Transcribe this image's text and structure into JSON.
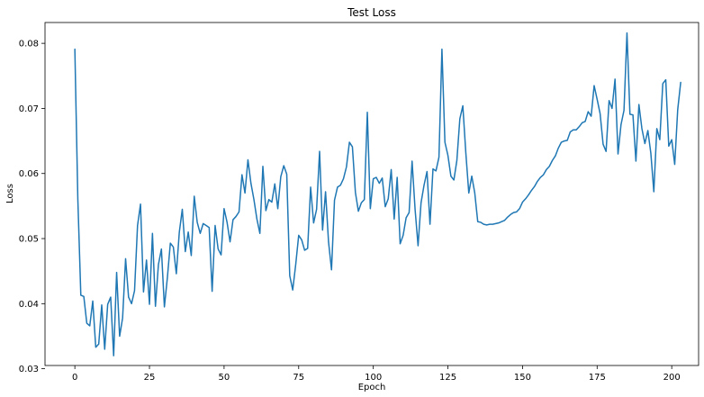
{
  "chart_data": {
    "type": "line",
    "title": "Test Loss",
    "xlabel": "Epoch",
    "ylabel": "Loss",
    "xlim": [
      -10,
      209
    ],
    "ylim": [
      0.0305,
      0.0832
    ],
    "x_ticks": [
      0,
      25,
      50,
      75,
      100,
      125,
      150,
      175,
      200
    ],
    "y_ticks": [
      0.03,
      0.04,
      0.05,
      0.06,
      0.07,
      0.08
    ],
    "grid": false,
    "line_color": "#1f77b4",
    "series": [
      {
        "values": [
          0.0791,
          0.056,
          0.0413,
          0.0411,
          0.037,
          0.0366,
          0.0404,
          0.0333,
          0.0338,
          0.0398,
          0.033,
          0.0399,
          0.041,
          0.032,
          0.0448,
          0.035,
          0.0378,
          0.0469,
          0.041,
          0.04,
          0.042,
          0.052,
          0.0553,
          0.0418,
          0.0467,
          0.0399,
          0.0508,
          0.0396,
          0.046,
          0.0484,
          0.0395,
          0.044,
          0.0493,
          0.0487,
          0.0446,
          0.051,
          0.0545,
          0.048,
          0.051,
          0.0474,
          0.0565,
          0.0525,
          0.0508,
          0.0523,
          0.052,
          0.0517,
          0.0419,
          0.052,
          0.0484,
          0.0475,
          0.0546,
          0.0525,
          0.0495,
          0.0529,
          0.0534,
          0.0541,
          0.0598,
          0.057,
          0.0621,
          0.0585,
          0.056,
          0.053,
          0.0508,
          0.0611,
          0.0543,
          0.056,
          0.0556,
          0.0584,
          0.0546,
          0.0595,
          0.0612,
          0.0599,
          0.0443,
          0.0421,
          0.046,
          0.0505,
          0.0498,
          0.0482,
          0.0485,
          0.0579,
          0.0524,
          0.0545,
          0.0634,
          0.0513,
          0.0572,
          0.0495,
          0.0452,
          0.0559,
          0.0579,
          0.0582,
          0.0592,
          0.061,
          0.0648,
          0.0641,
          0.0571,
          0.0542,
          0.0555,
          0.056,
          0.0694,
          0.0546,
          0.0592,
          0.0594,
          0.0585,
          0.0593,
          0.0549,
          0.0561,
          0.0606,
          0.053,
          0.0594,
          0.0492,
          0.0505,
          0.0532,
          0.054,
          0.0619,
          0.0545,
          0.0489,
          0.0555,
          0.0582,
          0.0603,
          0.0522,
          0.0607,
          0.0604,
          0.0625,
          0.0791,
          0.0648,
          0.0628,
          0.0596,
          0.059,
          0.062,
          0.0684,
          0.0704,
          0.0632,
          0.057,
          0.0596,
          0.057,
          0.0526,
          0.0525,
          0.0522,
          0.0521,
          0.0522,
          0.0522,
          0.0523,
          0.0524,
          0.0526,
          0.0528,
          0.0533,
          0.0537,
          0.054,
          0.0541,
          0.0546,
          0.0556,
          0.0561,
          0.0567,
          0.0574,
          0.058,
          0.0588,
          0.0594,
          0.0598,
          0.0606,
          0.0611,
          0.062,
          0.0627,
          0.0639,
          0.0648,
          0.065,
          0.0651,
          0.0664,
          0.0667,
          0.0667,
          0.0672,
          0.0678,
          0.068,
          0.0695,
          0.0688,
          0.0735,
          0.0714,
          0.0692,
          0.0645,
          0.0634,
          0.0712,
          0.07,
          0.0745,
          0.063,
          0.0675,
          0.0697,
          0.0816,
          0.0691,
          0.069,
          0.0619,
          0.0706,
          0.0669,
          0.0646,
          0.0666,
          0.0631,
          0.0572,
          0.0669,
          0.0652,
          0.0738,
          0.0744,
          0.0642,
          0.0652,
          0.0614,
          0.0698,
          0.074
        ]
      }
    ]
  }
}
